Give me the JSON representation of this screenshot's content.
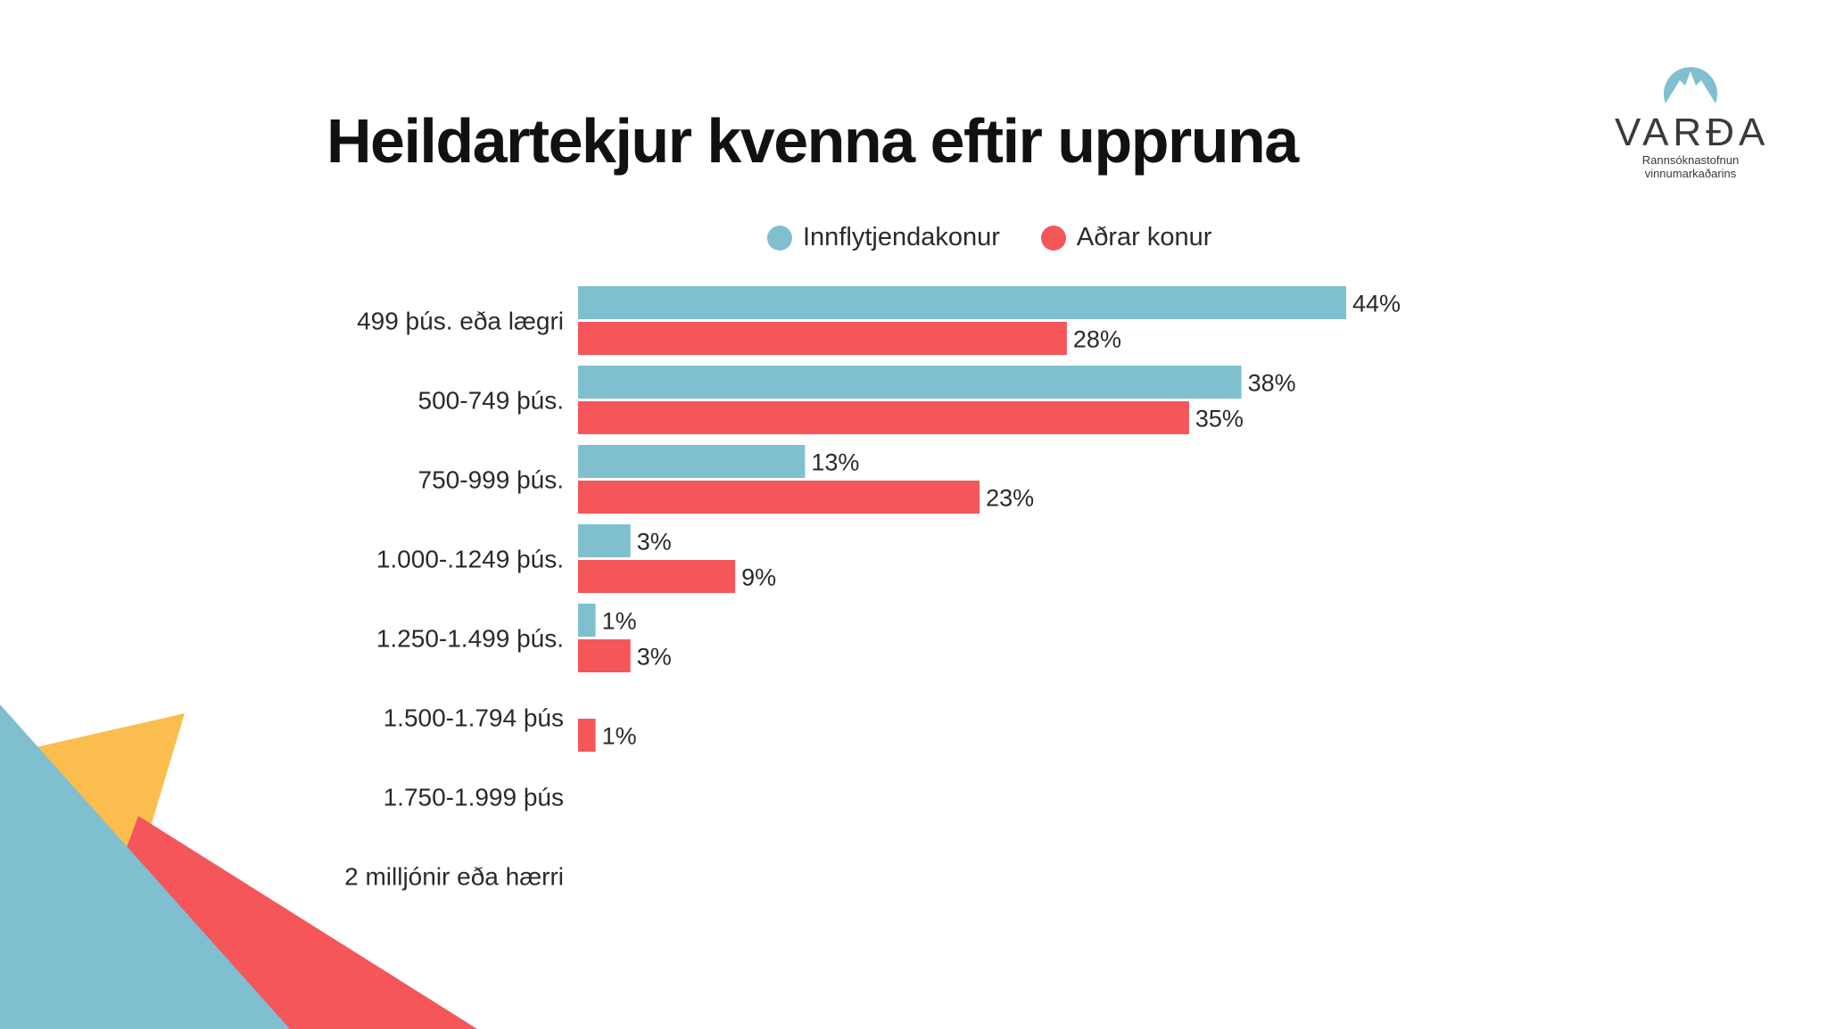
{
  "slide": {
    "title": "Heildartekjur kvenna eftir uppruna"
  },
  "logo": {
    "word": "VARÐA",
    "sub_line1": "Rannsóknastofnun",
    "sub_line2": "vinnumarkaðarins"
  },
  "colors": {
    "immigrant": "#7fbfd0",
    "other": "#f4565a",
    "deco_yellow": "#fcbd4f",
    "deco_blue": "#7fbfd0",
    "deco_red": "#f4565a"
  },
  "chart_data": {
    "type": "bar",
    "orientation": "horizontal",
    "title": "Heildartekjur kvenna eftir uppruna",
    "categories": [
      "499 þús. eða lægri",
      "500-749 þús.",
      "750-999 þús.",
      "1.000-.1249 þús.",
      "1.250-1.499 þús.",
      "1.500-1.794 þús",
      "1.750-1.999 þús",
      "2 milljónir eða hærri"
    ],
    "series": [
      {
        "name": "Innflytjendakonur",
        "color": "#7fbfd0",
        "values": [
          44,
          38,
          13,
          3,
          1,
          null,
          null,
          null
        ]
      },
      {
        "name": "Aðrar konur",
        "color": "#f4565a",
        "values": [
          28,
          35,
          23,
          9,
          3,
          1,
          null,
          null
        ]
      }
    ],
    "value_suffix": "%",
    "xlim": [
      0,
      50
    ],
    "legend": "top",
    "grid": false
  }
}
